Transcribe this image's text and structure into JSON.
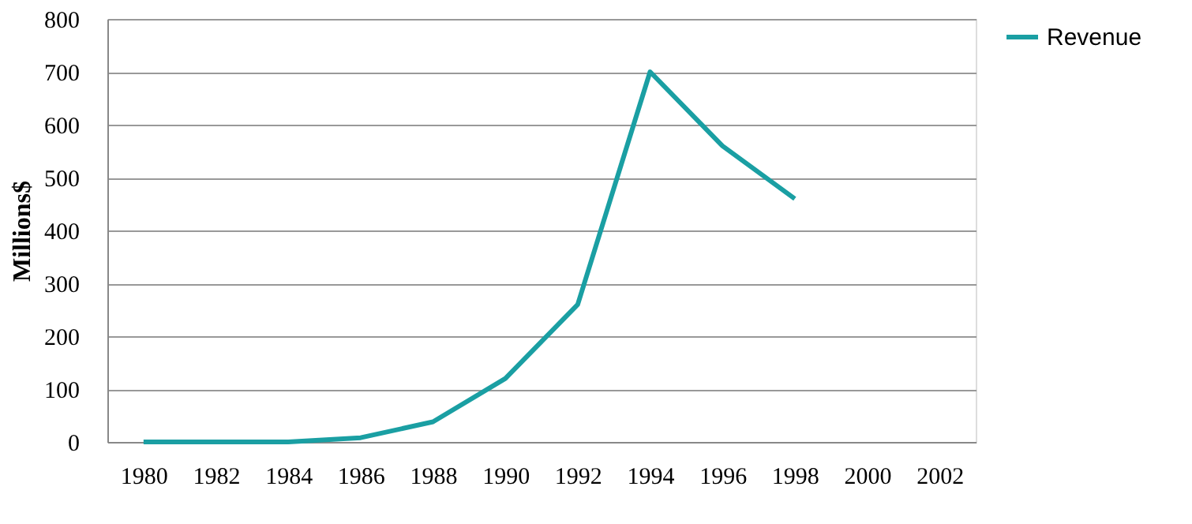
{
  "chart_data": {
    "type": "line",
    "ylabel": "Millions$",
    "categories": [
      "1980",
      "1982",
      "1984",
      "1986",
      "1988",
      "1990",
      "1992",
      "1994",
      "1996",
      "1998",
      "2000",
      "2002"
    ],
    "series": [
      {
        "name": "Revenue",
        "color": "#1a9fa3",
        "values": [
          0,
          0,
          0,
          8,
          38,
          120,
          260,
          700,
          560,
          460,
          null,
          null
        ]
      }
    ],
    "ylim": [
      0,
      800
    ],
    "yticks": [
      0,
      100,
      200,
      300,
      400,
      500,
      600,
      700,
      800
    ],
    "grid": "y",
    "legend": "right",
    "marker": "none",
    "line_style": "solid"
  }
}
